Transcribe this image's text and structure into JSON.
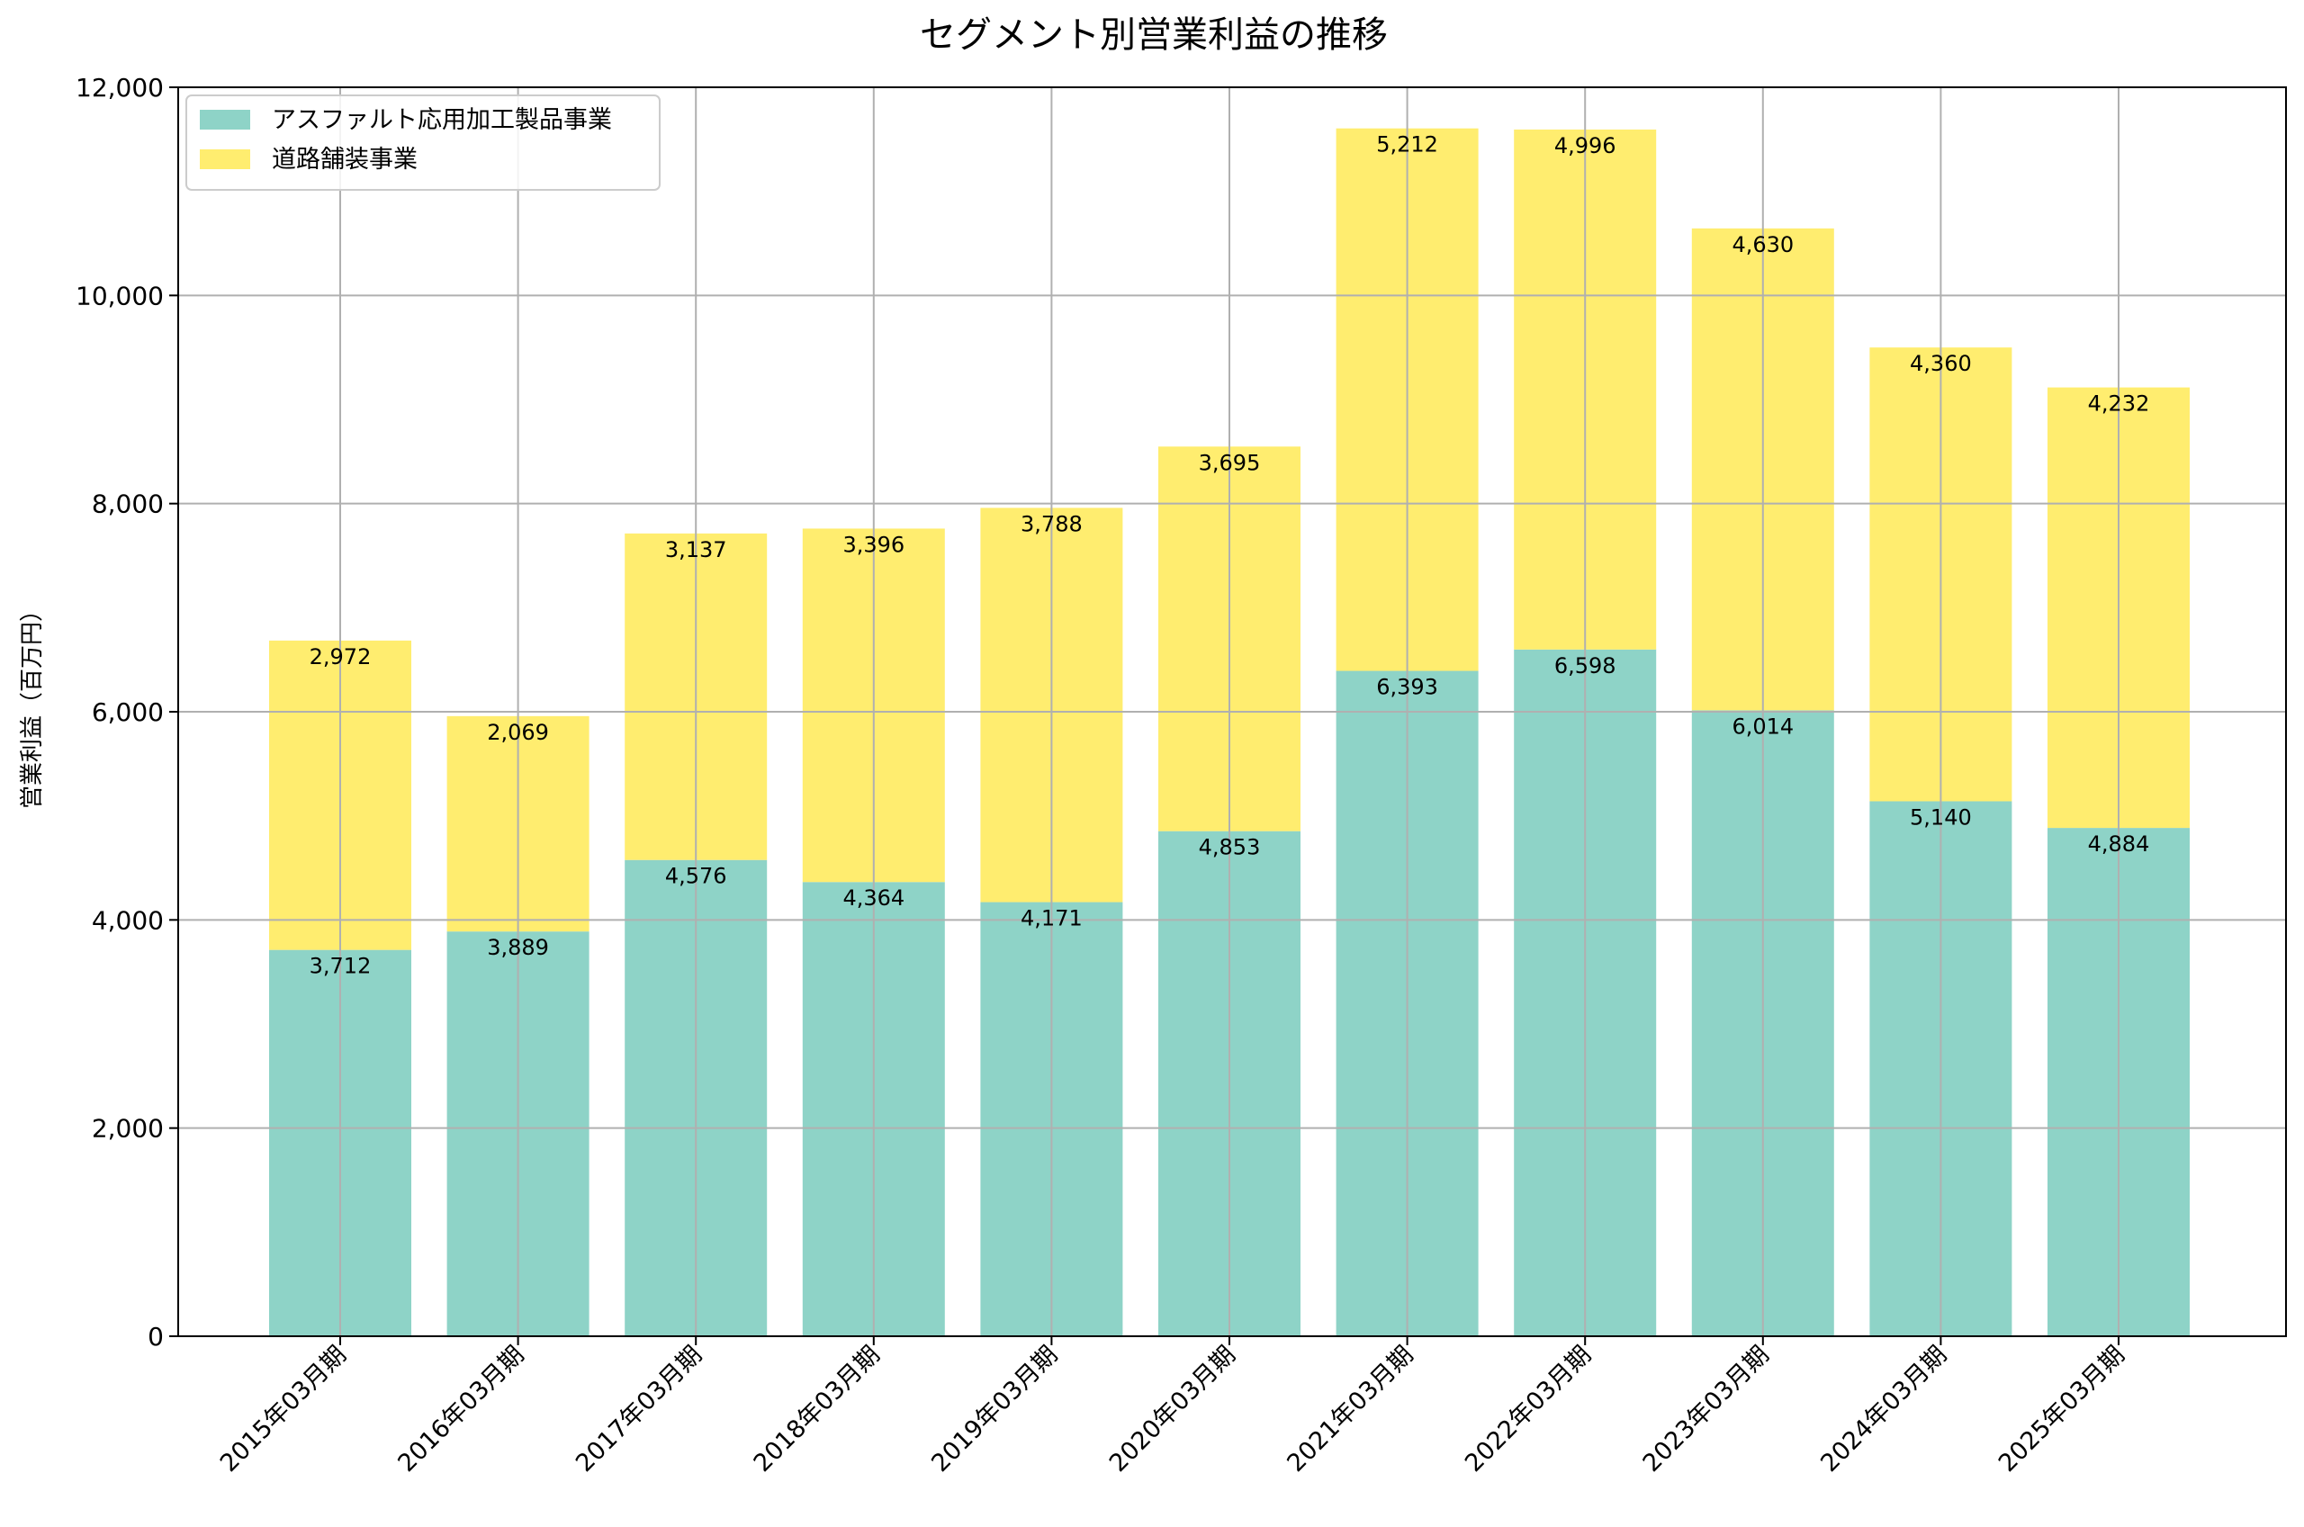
{
  "chart_data": {
    "type": "bar",
    "stacked": true,
    "title": "セグメント別営業利益の推移",
    "xlabel": "",
    "ylabel": "営業利益（百万円）",
    "ylim": [
      0,
      12000
    ],
    "yticks": [
      0,
      2000,
      4000,
      6000,
      8000,
      10000,
      12000
    ],
    "ytick_labels": [
      "0",
      "2,000",
      "4,000",
      "6,000",
      "8,000",
      "10,000",
      "12,000"
    ],
    "grid": true,
    "legend_position": "top-left",
    "categories": [
      "2015年03月期",
      "2016年03月期",
      "2017年03月期",
      "2018年03月期",
      "2019年03月期",
      "2020年03月期",
      "2021年03月期",
      "2022年03月期",
      "2023年03月期",
      "2024年03月期",
      "2025年03月期"
    ],
    "series": [
      {
        "name": "アスファルト応用加工製品事業",
        "color": "#8ed3c7",
        "values": [
          3712,
          3889,
          4576,
          4364,
          4171,
          4853,
          6393,
          6598,
          6014,
          5140,
          4884
        ],
        "labels": [
          "3,712",
          "3,889",
          "4,576",
          "4,364",
          "4,171",
          "4,853",
          "6,393",
          "6,598",
          "6,014",
          "5,140",
          "4,884"
        ]
      },
      {
        "name": "道路舗装事業",
        "color": "#ffed6f",
        "values": [
          2972,
          2069,
          3137,
          3396,
          3788,
          3695,
          5212,
          4996,
          4630,
          4360,
          4232
        ],
        "labels": [
          "2,972",
          "2,069",
          "3,137",
          "3,396",
          "3,788",
          "3,695",
          "5,212",
          "4,996",
          "4,630",
          "4,360",
          "4,232"
        ]
      }
    ]
  }
}
